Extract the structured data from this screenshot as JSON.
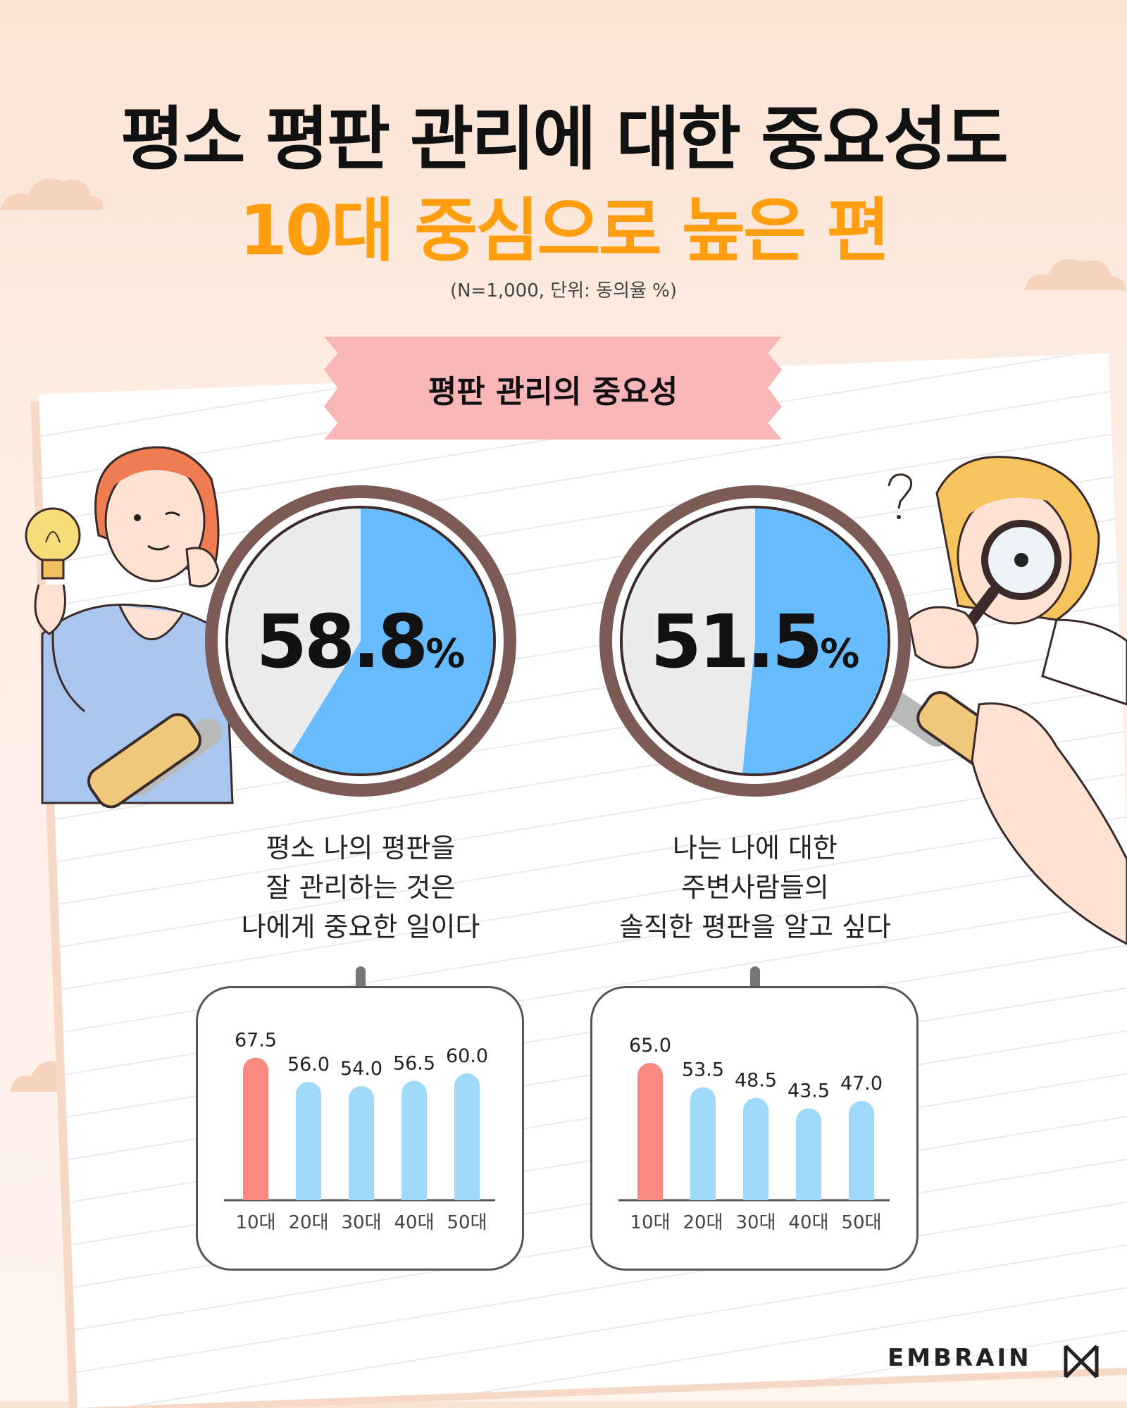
{
  "title_line1": "평소 평판 관리에 대한 중요성도",
  "title_line2": "10대 중심으로 높은 편",
  "note": "(N=1,000, 단위: 동의율 %)",
  "banner": "평판 관리의 중요성",
  "colors": {
    "highlight_bar": "#f98a80",
    "bar": "#9fdafa",
    "pie_fill": "#66bcff",
    "pie_rest": "#ececec",
    "title_accent": "#ff9e0f",
    "banner": "#f9b6b9"
  },
  "chart_data": [
    {
      "type": "pie",
      "value": 58.8,
      "label": "58.8",
      "unit": "%",
      "caption": [
        "평소 나의 평판을",
        "잘 관리하는 것은",
        "나에게 중요한 일이다"
      ]
    },
    {
      "type": "pie",
      "value": 51.5,
      "label": "51.5",
      "unit": "%",
      "caption": [
        "나는 나에 대한",
        "주변사람들의",
        "솔직한 평판을 알고 싶다"
      ]
    },
    {
      "type": "bar",
      "categories": [
        "10대",
        "20대",
        "30대",
        "40대",
        "50대"
      ],
      "values": [
        67.5,
        56.0,
        54.0,
        56.5,
        60.0
      ],
      "labels": [
        "67.5",
        "56.0",
        "54.0",
        "56.5",
        "60.0"
      ],
      "highlight_index": 0,
      "ylim": [
        0,
        100
      ]
    },
    {
      "type": "bar",
      "categories": [
        "10대",
        "20대",
        "30대",
        "40대",
        "50대"
      ],
      "values": [
        65.0,
        53.5,
        48.5,
        43.5,
        47.0
      ],
      "labels": [
        "65.0",
        "53.5",
        "48.5",
        "43.5",
        "47.0"
      ],
      "highlight_index": 0,
      "ylim": [
        0,
        100
      ]
    }
  ],
  "logo": "EMBRAIN",
  "icons": [
    "cloud-icon",
    "lightbulb-icon",
    "magnifier-icon",
    "question-mark-icon",
    "embrain-logo-icon"
  ]
}
